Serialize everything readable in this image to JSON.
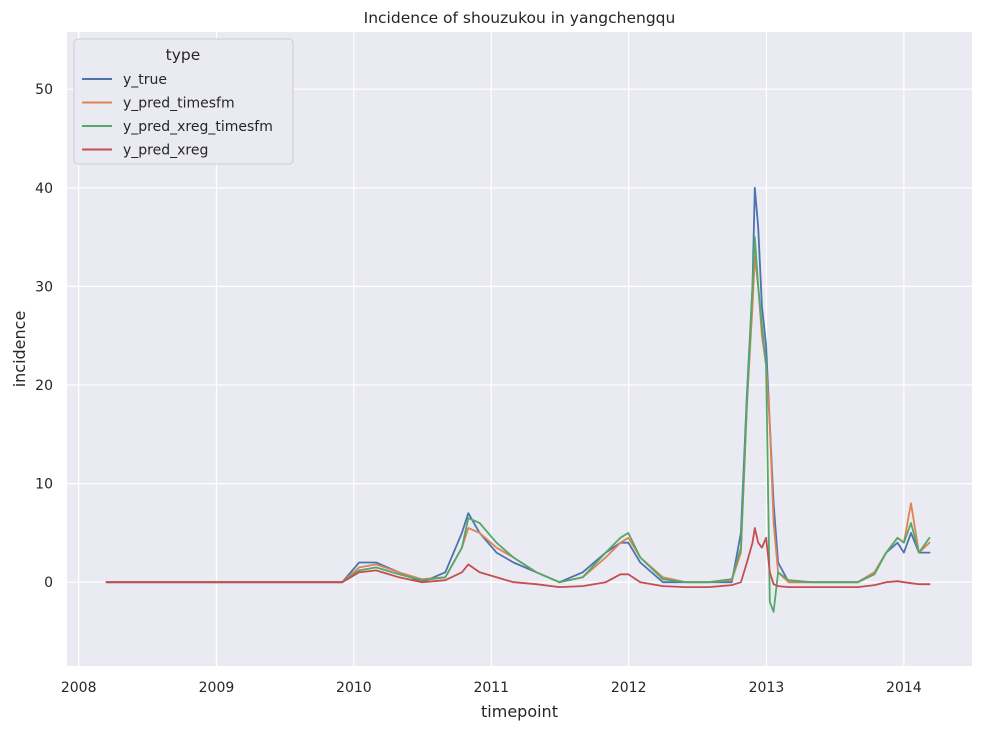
{
  "chart_data": {
    "type": "line",
    "title": "Incidence of shouzukou in yangchengqu",
    "xlabel": "timepoint",
    "ylabel": "incidence",
    "xlim": [
      "2007-12-01",
      "2014-07-01"
    ],
    "ylim": [
      -8.5,
      55.8
    ],
    "grid": true,
    "legend_title": "type",
    "legend_position": "top-left",
    "x_ticks": [
      {
        "date": "2008-01-01",
        "label": "2008"
      },
      {
        "date": "2009-01-01",
        "label": "2009"
      },
      {
        "date": "2010-01-01",
        "label": "2010"
      },
      {
        "date": "2011-01-01",
        "label": "2011"
      },
      {
        "date": "2012-01-01",
        "label": "2012"
      },
      {
        "date": "2013-01-01",
        "label": "2013"
      },
      {
        "date": "2014-01-01",
        "label": "2014"
      }
    ],
    "y_ticks": [
      0,
      10,
      20,
      30,
      40,
      50
    ],
    "x": [
      "2008-03-15",
      "2009-04-15",
      "2009-06-01",
      "2009-08-01",
      "2009-10-01",
      "2009-12-01",
      "2010-01-15",
      "2010-03-01",
      "2010-05-01",
      "2010-07-01",
      "2010-09-01",
      "2010-10-15",
      "2010-11-01",
      "2010-12-01",
      "2011-01-15",
      "2011-03-01",
      "2011-05-01",
      "2011-07-01",
      "2011-09-01",
      "2011-11-01",
      "2011-12-10",
      "2011-12-31",
      "2012-02-01",
      "2012-04-01",
      "2012-06-01",
      "2012-08-01",
      "2012-10-01",
      "2012-10-25",
      "2012-11-10",
      "2012-11-25",
      "2012-12-01",
      "2012-12-10",
      "2012-12-20",
      "2012-12-31",
      "2013-01-10",
      "2013-01-20",
      "2013-02-01",
      "2013-03-01",
      "2013-05-01",
      "2013-07-01",
      "2013-09-01",
      "2013-10-15",
      "2013-11-15",
      "2013-12-15",
      "2014-01-01",
      "2014-01-20",
      "2014-02-10",
      "2014-03-10"
    ],
    "series": [
      {
        "name": "y_true",
        "color": "#4c72b0",
        "values": [
          0,
          0,
          0,
          0,
          0,
          0,
          2,
          2,
          1,
          0,
          1,
          5,
          7,
          5,
          3,
          2,
          1,
          0,
          1,
          3,
          4,
          4,
          2,
          0,
          0,
          0,
          0,
          5,
          19,
          30,
          40,
          36,
          28,
          24,
          16,
          8,
          2,
          0,
          0,
          0,
          0,
          1,
          3,
          4,
          3,
          5,
          3,
          3
        ]
      },
      {
        "name": "y_pred_timesfm",
        "color": "#dd8452",
        "values": [
          0,
          0,
          0,
          0,
          0,
          0,
          1.5,
          1.8,
          1,
          0.3,
          0.5,
          3.5,
          5.5,
          5,
          3.5,
          2.5,
          1,
          0,
          0.5,
          2.5,
          4,
          4.5,
          2.5,
          0.5,
          0,
          0,
          0.2,
          3,
          18,
          28,
          33,
          30,
          25,
          22,
          16,
          6,
          1,
          0,
          0,
          0,
          0,
          1,
          3,
          4.5,
          4,
          8,
          3,
          4
        ]
      },
      {
        "name": "y_pred_xreg_timesfm",
        "color": "#55a868",
        "values": [
          0,
          0,
          0,
          0,
          0,
          0,
          1.2,
          1.5,
          0.8,
          0.2,
          0.5,
          3.5,
          6.5,
          6,
          4,
          2.5,
          1,
          0,
          0.5,
          3,
          4.5,
          5,
          2.5,
          0.3,
          0,
          0,
          0.3,
          3.5,
          18,
          30,
          35,
          30,
          26,
          22,
          -2,
          -3,
          1,
          0.2,
          0,
          0,
          0,
          0.8,
          3,
          4.5,
          4,
          6,
          3,
          4.5
        ]
      },
      {
        "name": "y_pred_xreg",
        "color": "#c44e52",
        "values": [
          0,
          0,
          0,
          0,
          0,
          0,
          1,
          1.2,
          0.5,
          0,
          0.2,
          1,
          1.8,
          1,
          0.5,
          0,
          -0.2,
          -0.5,
          -0.4,
          0,
          0.8,
          0.8,
          0,
          -0.4,
          -0.5,
          -0.5,
          -0.3,
          0,
          2,
          4,
          5.5,
          4,
          3.5,
          4.5,
          1,
          -0.2,
          -0.4,
          -0.5,
          -0.5,
          -0.5,
          -0.5,
          -0.3,
          0,
          0.1,
          0,
          -0.1,
          -0.2,
          -0.2
        ]
      }
    ]
  }
}
